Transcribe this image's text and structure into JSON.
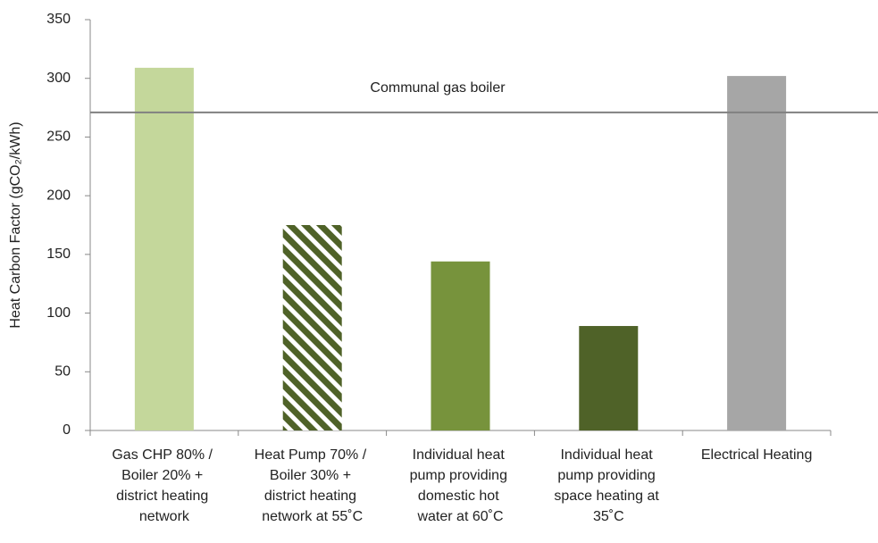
{
  "chart_data": {
    "type": "bar",
    "ylabel": "Heat Carbon Factor (gCO₂/kWh)",
    "categories": [
      "Gas CHP 80% / Boiler 20% + district heating network",
      "Heat Pump 70% / Boiler 30% + district heating network at 55˚C",
      "Individual heat pump providing domestic hot water at 60˚C",
      "Individual heat pump providing space heating at 35˚C",
      "Electrical Heating"
    ],
    "values": [
      309,
      175,
      144,
      89,
      302
    ],
    "colors": [
      "#c4d79b",
      "#4f6228",
      "#77933c",
      "#4f6228",
      "#a6a6a6"
    ],
    "hatched": [
      false,
      true,
      false,
      false,
      false
    ],
    "reference_line": {
      "label": "Communal gas boiler",
      "value": 271,
      "color": "#808080"
    },
    "ylim": [
      0,
      350
    ],
    "yticks": [
      0,
      50,
      100,
      150,
      200,
      250,
      300,
      350
    ],
    "grid": false
  }
}
